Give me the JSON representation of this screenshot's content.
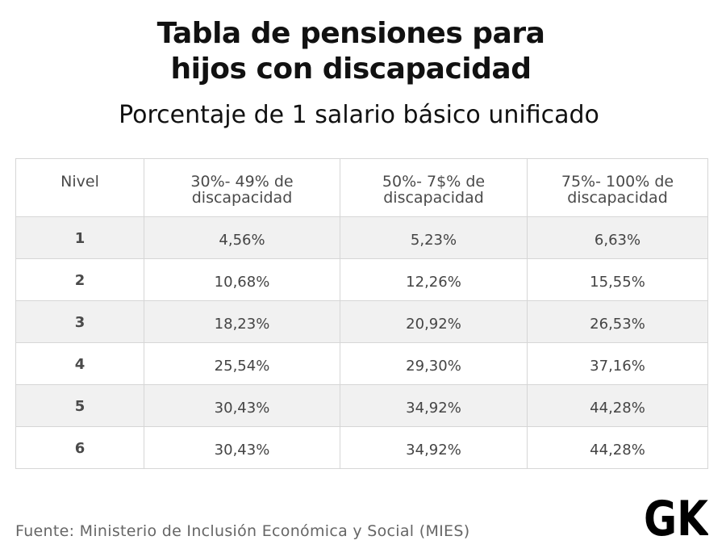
{
  "header": {
    "title_line1": "Tabla de pensiones para",
    "title_line2": "hijos con discapacidad",
    "subtitle": "Porcentaje de 1 salario básico unificado"
  },
  "table": {
    "columns": [
      "Nivel",
      "30%- 49% de discapacidad",
      "50%- 7$% de discapacidad",
      "75%- 100% de discapacidad"
    ],
    "rows": [
      [
        "1",
        "4,56%",
        "5,23%",
        "6,63%"
      ],
      [
        "2",
        "10,68%",
        "12,26%",
        "15,55%"
      ],
      [
        "3",
        "18,23%",
        "20,92%",
        "26,53%"
      ],
      [
        "4",
        "25,54%",
        "29,30%",
        "37,16%"
      ],
      [
        "5",
        "30,43%",
        "34,92%",
        "44,28%"
      ],
      [
        "6",
        "30,43%",
        "34,92%",
        "44,28%"
      ]
    ]
  },
  "footer": {
    "source": "Fuente: Ministerio de Inclusión Económica y Social (MIES)",
    "logo_text": "GK"
  },
  "colors": {
    "shaded_row": "#f1f1f1",
    "border": "#d6d6d6",
    "text": "#111111"
  },
  "chart_data": {
    "type": "table",
    "title": "Tabla de pensiones para hijos con discapacidad",
    "subtitle": "Porcentaje de 1 salario básico unificado",
    "columns": [
      "Nivel",
      "30%- 49% de discapacidad",
      "50%- 7$% de discapacidad",
      "75%- 100% de discapacidad"
    ],
    "rows": [
      [
        "1",
        "4,56%",
        "5,23%",
        "6,63%"
      ],
      [
        "2",
        "10,68%",
        "12,26%",
        "15,55%"
      ],
      [
        "3",
        "18,23%",
        "20,92%",
        "26,53%"
      ],
      [
        "4",
        "25,54%",
        "29,30%",
        "37,16%"
      ],
      [
        "5",
        "30,43%",
        "34,92%",
        "44,28%"
      ],
      [
        "6",
        "30,43%",
        "34,92%",
        "44,28%"
      ]
    ]
  }
}
